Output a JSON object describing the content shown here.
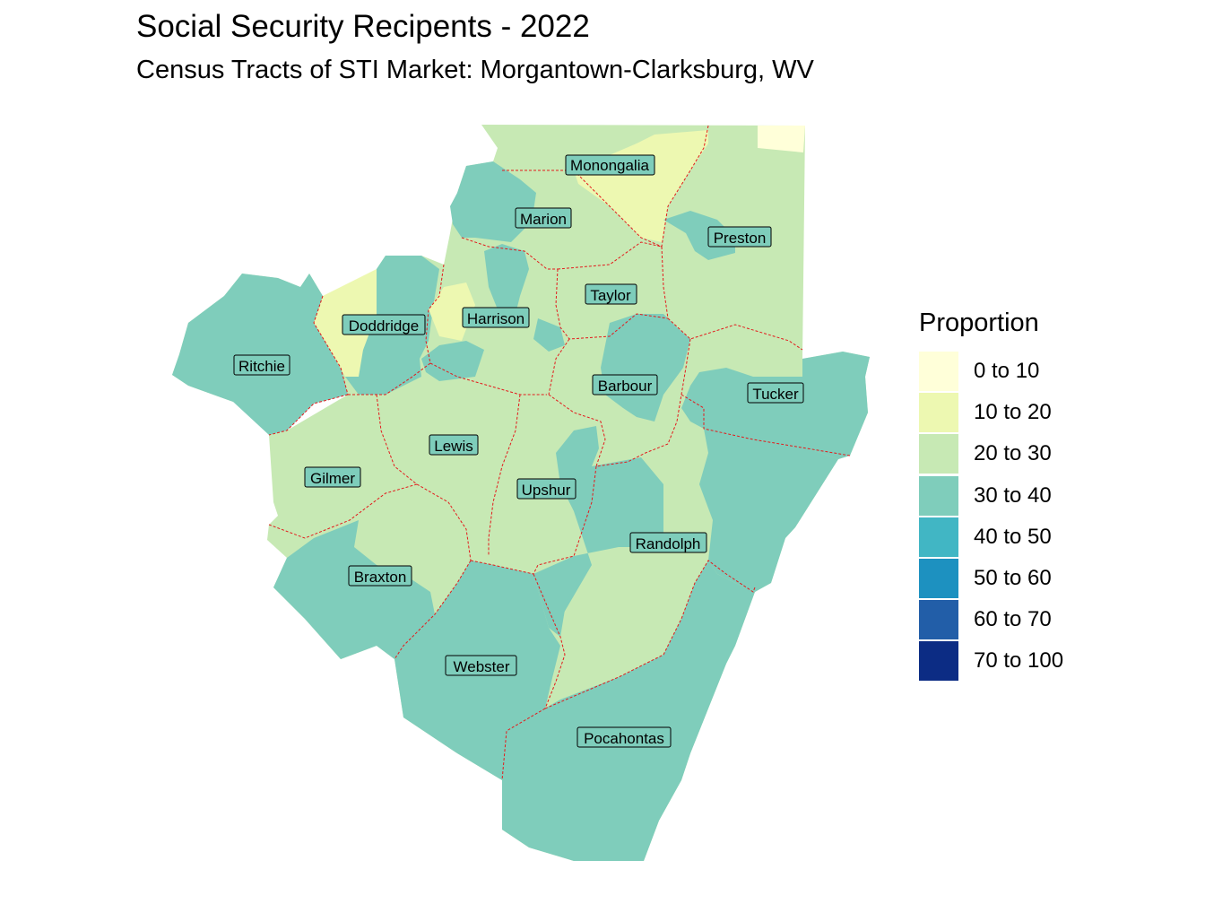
{
  "title": "Social Security Recipents - 2022",
  "subtitle": "Census Tracts of STI Market: Morgantown-Clarksburg, WV",
  "legend": {
    "title": "Proportion",
    "items": [
      {
        "label": "0 to 10",
        "color": "#ffffd9"
      },
      {
        "label": "10 to 20",
        "color": "#edf8b1"
      },
      {
        "label": "20 to 30",
        "color": "#c7e9b4"
      },
      {
        "label": "30 to 40",
        "color": "#7fcdbb"
      },
      {
        "label": "40 to 50",
        "color": "#41b6c4"
      },
      {
        "label": "50 to 60",
        "color": "#1d91c0"
      },
      {
        "label": "60 to 70",
        "color": "#225ea8"
      },
      {
        "label": "70 to 100",
        "color": "#0c2c84"
      }
    ]
  },
  "counties": [
    {
      "name": "Monongalia"
    },
    {
      "name": "Marion"
    },
    {
      "name": "Preston"
    },
    {
      "name": "Taylor"
    },
    {
      "name": "Doddridge"
    },
    {
      "name": "Harrison"
    },
    {
      "name": "Ritchie"
    },
    {
      "name": "Barbour"
    },
    {
      "name": "Tucker"
    },
    {
      "name": "Lewis"
    },
    {
      "name": "Gilmer"
    },
    {
      "name": "Upshur"
    },
    {
      "name": "Randolph"
    },
    {
      "name": "Braxton"
    },
    {
      "name": "Webster"
    },
    {
      "name": "Pocahontas"
    }
  ],
  "styles": {
    "boundary_color": "#e31a1c",
    "label_fill": "#7ecdbb"
  }
}
